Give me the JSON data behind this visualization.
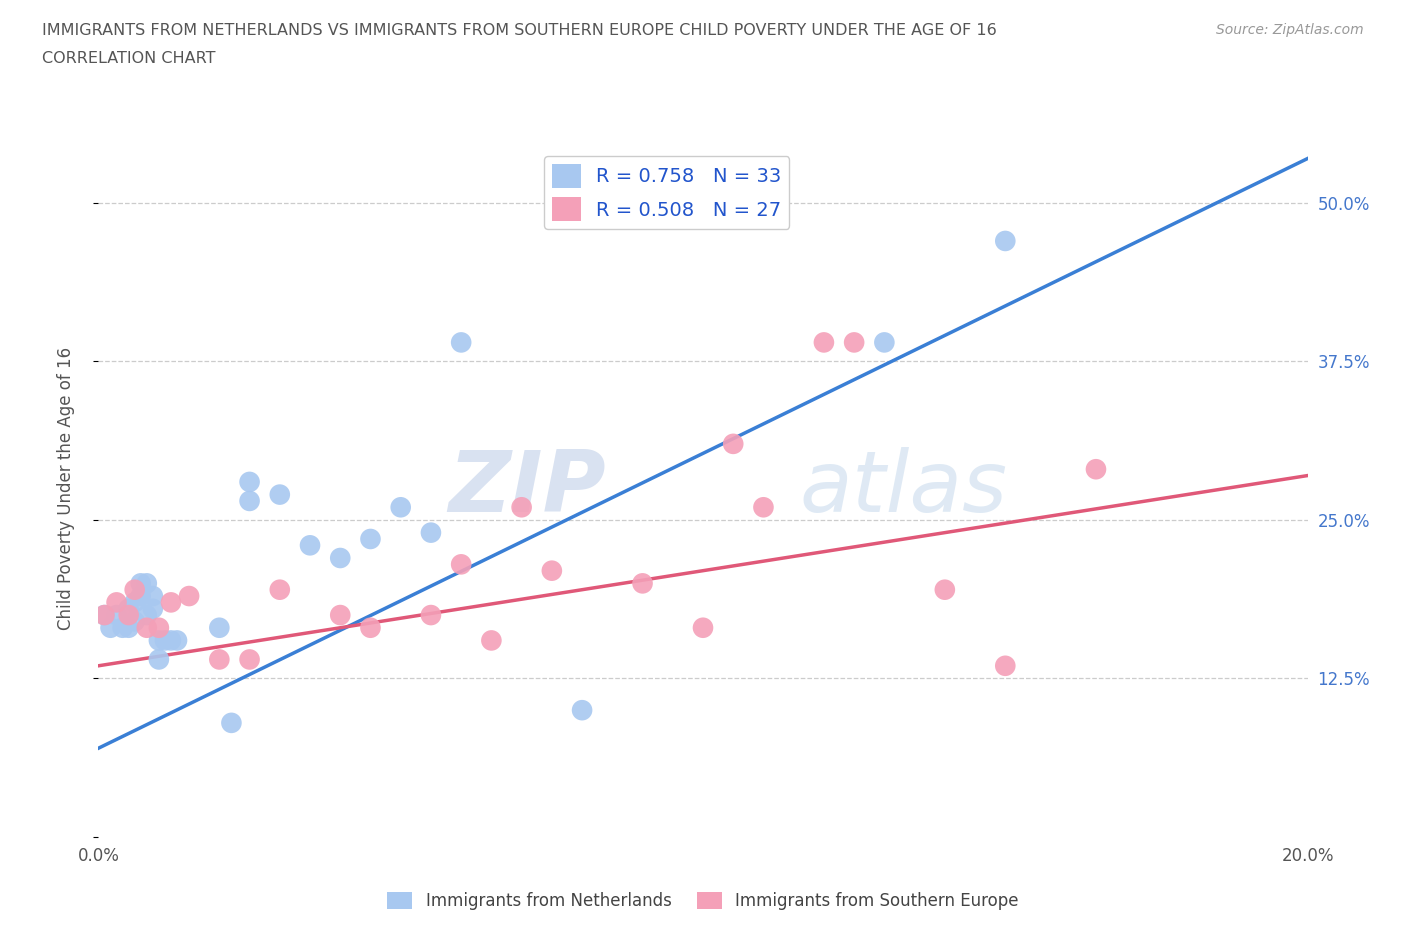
{
  "title_line1": "IMMIGRANTS FROM NETHERLANDS VS IMMIGRANTS FROM SOUTHERN EUROPE CHILD POVERTY UNDER THE AGE OF 16",
  "title_line2": "CORRELATION CHART",
  "source_text": "Source: ZipAtlas.com",
  "ylabel": "Child Poverty Under the Age of 16",
  "xmin": 0.0,
  "xmax": 0.2,
  "ymin": 0.0,
  "ymax": 0.55,
  "yticks": [
    0.0,
    0.125,
    0.25,
    0.375,
    0.5
  ],
  "ytick_labels": [
    "",
    "12.5%",
    "25.0%",
    "37.5%",
    "50.0%"
  ],
  "xticks": [
    0.0,
    0.05,
    0.1,
    0.15,
    0.2
  ],
  "xtick_labels": [
    "0.0%",
    "",
    "",
    "",
    "20.0%"
  ],
  "gridline_y": [
    0.125,
    0.25,
    0.375,
    0.5
  ],
  "R_blue": 0.758,
  "N_blue": 33,
  "R_pink": 0.508,
  "N_pink": 27,
  "legend_label_blue": "Immigrants from Netherlands",
  "legend_label_pink": "Immigrants from Southern Europe",
  "blue_color": "#a8c8f0",
  "pink_color": "#f4a0b8",
  "blue_line_color": "#3a7fd5",
  "pink_line_color": "#e05878",
  "title_color": "#555555",
  "legend_text_color": "#2255cc",
  "watermark_zip": "ZIP",
  "watermark_atlas": "atlas",
  "blue_scatter_x": [
    0.001,
    0.002,
    0.003,
    0.004,
    0.005,
    0.005,
    0.006,
    0.006,
    0.007,
    0.007,
    0.008,
    0.008,
    0.009,
    0.009,
    0.01,
    0.01,
    0.011,
    0.012,
    0.013,
    0.02,
    0.022,
    0.025,
    0.025,
    0.03,
    0.035,
    0.04,
    0.045,
    0.05,
    0.055,
    0.06,
    0.08,
    0.13,
    0.15
  ],
  "blue_scatter_y": [
    0.175,
    0.165,
    0.175,
    0.165,
    0.165,
    0.18,
    0.17,
    0.185,
    0.19,
    0.2,
    0.2,
    0.175,
    0.18,
    0.19,
    0.14,
    0.155,
    0.155,
    0.155,
    0.155,
    0.165,
    0.09,
    0.265,
    0.28,
    0.27,
    0.23,
    0.22,
    0.235,
    0.26,
    0.24,
    0.39,
    0.1,
    0.39,
    0.47
  ],
  "pink_scatter_x": [
    0.001,
    0.003,
    0.005,
    0.006,
    0.008,
    0.01,
    0.012,
    0.015,
    0.02,
    0.025,
    0.03,
    0.04,
    0.045,
    0.055,
    0.06,
    0.065,
    0.07,
    0.075,
    0.09,
    0.1,
    0.105,
    0.11,
    0.12,
    0.125,
    0.14,
    0.15,
    0.165
  ],
  "pink_scatter_y": [
    0.175,
    0.185,
    0.175,
    0.195,
    0.165,
    0.165,
    0.185,
    0.19,
    0.14,
    0.14,
    0.195,
    0.175,
    0.165,
    0.175,
    0.215,
    0.155,
    0.26,
    0.21,
    0.2,
    0.165,
    0.31,
    0.26,
    0.39,
    0.39,
    0.195,
    0.135,
    0.29
  ],
  "blue_line_x0": 0.0,
  "blue_line_y0": 0.07,
  "blue_line_x1": 0.2,
  "blue_line_y1": 0.535,
  "pink_line_x0": 0.0,
  "pink_line_y0": 0.135,
  "pink_line_x1": 0.2,
  "pink_line_y1": 0.285
}
